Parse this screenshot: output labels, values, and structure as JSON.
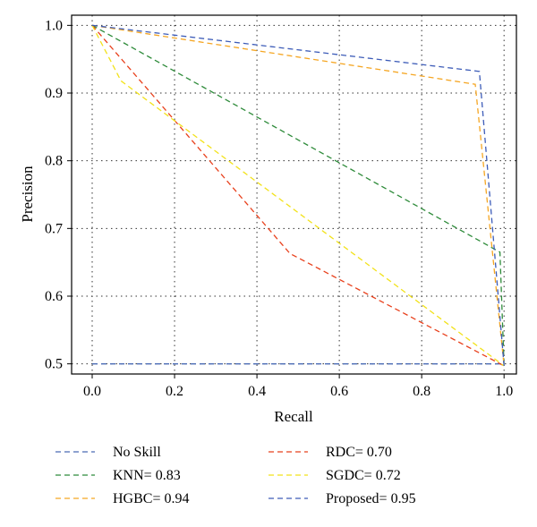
{
  "chart_data": {
    "type": "line",
    "xlabel": "Recall",
    "ylabel": "Precision",
    "xlim": [
      -0.05,
      1.03
    ],
    "ylim": [
      0.485,
      1.015
    ],
    "xticks": [
      0.0,
      0.2,
      0.4,
      0.6,
      0.8,
      1.0
    ],
    "xtick_labels": [
      "0.0",
      "0.2",
      "0.4",
      "0.6",
      "0.8",
      "1.0"
    ],
    "yticks": [
      0.5,
      0.6,
      0.7,
      0.8,
      0.9,
      1.0
    ],
    "ytick_labels": [
      "0.5",
      "0.6",
      "0.7",
      "0.8",
      "0.9",
      "1.0"
    ],
    "grid": true,
    "grid_style": "dotted",
    "legend_position": "bottom",
    "series": [
      {
        "name": "No Skill",
        "color": "#4a6bb5",
        "dash": "dashed",
        "x": [
          0.0,
          1.0
        ],
        "y": [
          0.5,
          0.5
        ]
      },
      {
        "name": "KNN= 0.83",
        "color": "#2e8b3a",
        "dash": "dashed",
        "x": [
          0.0,
          0.99,
          1.0
        ],
        "y": [
          1.0,
          0.665,
          0.497
        ]
      },
      {
        "name": "HGBC= 0.94",
        "color": "#f5a623",
        "dash": "dashed",
        "x": [
          0.0,
          0.93,
          1.0
        ],
        "y": [
          1.0,
          0.913,
          0.497
        ]
      },
      {
        "name": "RDC= 0.70",
        "color": "#e8401c",
        "dash": "dashed",
        "x": [
          0.0,
          0.48,
          1.0
        ],
        "y": [
          1.0,
          0.663,
          0.497
        ]
      },
      {
        "name": "SGDC= 0.72",
        "color": "#f2e21a",
        "dash": "dashed",
        "x": [
          0.0,
          0.07,
          1.0
        ],
        "y": [
          1.0,
          0.918,
          0.497
        ]
      },
      {
        "name": "Proposed= 0.95",
        "color": "#3d5cb8",
        "dash": "dashed",
        "x": [
          0.0,
          0.94,
          1.0
        ],
        "y": [
          1.0,
          0.932,
          0.497
        ]
      }
    ]
  }
}
